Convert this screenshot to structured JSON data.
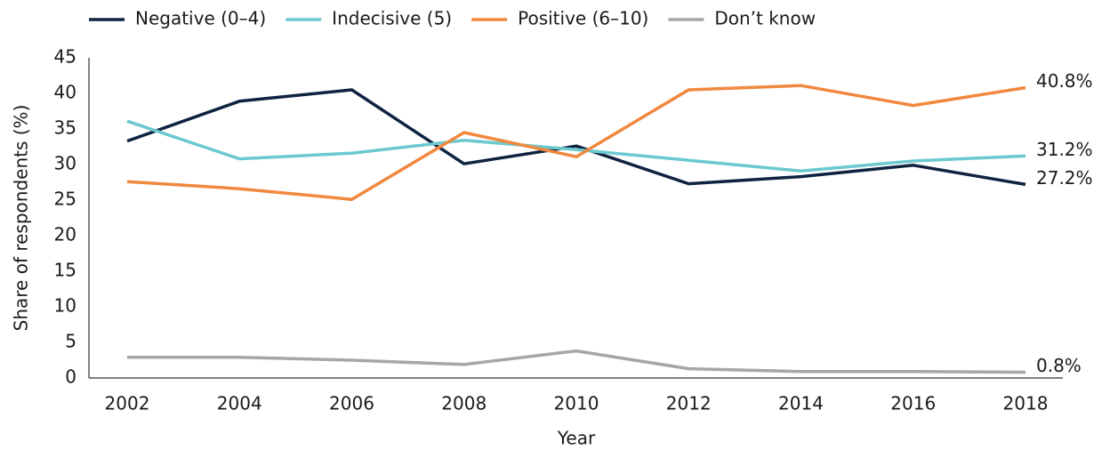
{
  "chart_data": {
    "type": "line",
    "x_label": "Year",
    "y_label": "Share of respondents (%)",
    "x": [
      2002,
      2004,
      2006,
      2008,
      2010,
      2012,
      2014,
      2016,
      2018
    ],
    "xlim": [
      2002,
      2018
    ],
    "ylim": [
      0,
      45
    ],
    "yticks": [
      0,
      5,
      10,
      15,
      20,
      25,
      30,
      35,
      40,
      45
    ],
    "legend": "top-left",
    "series": [
      {
        "name": "Negative (0–4)",
        "color": "#0f2340",
        "values": [
          33.3,
          38.9,
          40.5,
          30.1,
          32.6,
          27.3,
          28.3,
          29.9,
          27.2
        ],
        "value_labels": [
          null,
          null,
          null,
          null,
          null,
          null,
          null,
          null,
          "27.2%"
        ]
      },
      {
        "name": "Indecisive (5)",
        "color": "#6cc9cf",
        "values": [
          36.1,
          30.8,
          31.6,
          33.4,
          32.1,
          30.6,
          29.1,
          30.5,
          31.2
        ],
        "value_labels": [
          null,
          null,
          null,
          null,
          null,
          null,
          null,
          null,
          "31.2%"
        ]
      },
      {
        "name": "Positive (6–10)",
        "color": "#f0883e",
        "values": [
          27.6,
          26.6,
          25.1,
          34.5,
          31.1,
          40.5,
          41.1,
          38.3,
          40.8
        ],
        "value_labels": [
          null,
          null,
          null,
          null,
          null,
          null,
          null,
          null,
          "40.8%"
        ]
      },
      {
        "name": "Don’t know",
        "color": "#a6a6a6",
        "values": [
          2.9,
          2.9,
          2.5,
          1.9,
          3.8,
          1.3,
          0.9,
          0.9,
          0.8
        ],
        "value_labels": [
          null,
          null,
          null,
          null,
          null,
          null,
          null,
          null,
          "0.8%"
        ]
      }
    ]
  }
}
